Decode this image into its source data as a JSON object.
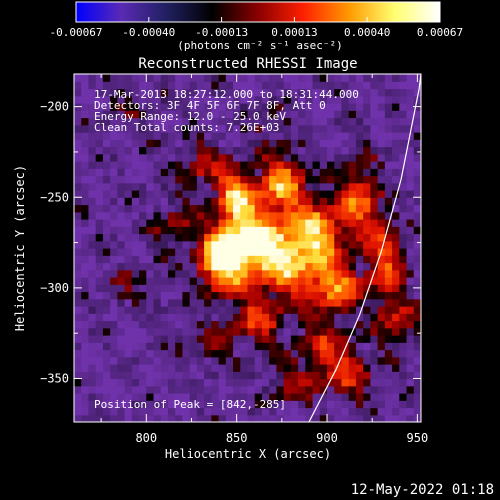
{
  "chart_data": {
    "type": "heatmap",
    "title": "Reconstructed RHESSI Image",
    "xlabel": "Heliocentric X (arcsec)",
    "ylabel": "Heliocentric Y (arcsec)",
    "xlim": [
      760,
      952
    ],
    "ylim": [
      -374,
      -182
    ],
    "x_ticks": [
      800,
      850,
      900,
      950
    ],
    "y_ticks": [
      -200,
      -250,
      -300,
      -350
    ],
    "colorbar": {
      "ticks": [
        "-0.00067",
        "-0.00040",
        "-0.00013",
        "0.00013",
        "0.00040",
        "0.00067"
      ],
      "range": [
        -0.00067,
        0.00067
      ],
      "unit_label": "(photons cm⁻² s⁻¹ asec⁻²)",
      "colors": [
        "#0000ff",
        "#5a2ab4",
        "#202060",
        "#000000",
        "#8a0000",
        "#ff2000",
        "#ff9a00",
        "#ffff70",
        "#ffffff"
      ]
    },
    "annotations": {
      "time_range": "17-Mar-2013 18:27:12.000 to 18:31:44.000",
      "detectors": "Detectors: 3F 4F 5F 6F 7F 8F, Att 0",
      "energy": "Energy Range: 12.0 - 25.0 keV",
      "clean": "Clean    Total counts: 7.26E+03",
      "peak": "Position of Peak = [842,-285]"
    },
    "peak_position": [
      842,
      -285
    ],
    "blobs": [
      {
        "x": 842,
        "y": -285,
        "amp": 1.0,
        "sx": 10,
        "sy": 12
      },
      {
        "x": 858,
        "y": -272,
        "amp": 0.85,
        "sx": 12,
        "sy": 12
      },
      {
        "x": 850,
        "y": -248,
        "amp": 0.8,
        "sx": 8,
        "sy": 10
      },
      {
        "x": 876,
        "y": -242,
        "amp": 0.75,
        "sx": 9,
        "sy": 11
      },
      {
        "x": 878,
        "y": -285,
        "amp": 0.8,
        "sx": 14,
        "sy": 14
      },
      {
        "x": 896,
        "y": -268,
        "amp": 0.7,
        "sx": 10,
        "sy": 12
      },
      {
        "x": 905,
        "y": -300,
        "amp": 0.65,
        "sx": 10,
        "sy": 10
      },
      {
        "x": 918,
        "y": -250,
        "amp": 0.6,
        "sx": 8,
        "sy": 14
      },
      {
        "x": 932,
        "y": -285,
        "amp": 0.55,
        "sx": 8,
        "sy": 18
      },
      {
        "x": 830,
        "y": -232,
        "amp": 0.4,
        "sx": 9,
        "sy": 9
      },
      {
        "x": 815,
        "y": -265,
        "amp": 0.35,
        "sx": 8,
        "sy": 10
      },
      {
        "x": 862,
        "y": -318,
        "amp": 0.5,
        "sx": 10,
        "sy": 9
      },
      {
        "x": 900,
        "y": -335,
        "amp": 0.45,
        "sx": 12,
        "sy": 12
      },
      {
        "x": 940,
        "y": -320,
        "amp": 0.4,
        "sx": 8,
        "sy": 10
      },
      {
        "x": 915,
        "y": -350,
        "amp": 0.35,
        "sx": 10,
        "sy": 9
      },
      {
        "x": 835,
        "y": -330,
        "amp": 0.3,
        "sx": 10,
        "sy": 8
      },
      {
        "x": 790,
        "y": -300,
        "amp": 0.2,
        "sx": 12,
        "sy": 10
      },
      {
        "x": 795,
        "y": -200,
        "amp": 0.15,
        "sx": 14,
        "sy": 10
      },
      {
        "x": 868,
        "y": -210,
        "amp": 0.25,
        "sx": 10,
        "sy": 8
      },
      {
        "x": 880,
        "y": -355,
        "amp": 0.3,
        "sx": 10,
        "sy": 8
      }
    ],
    "limb_curve": [
      [
        890,
        -374
      ],
      [
        905,
        -345
      ],
      [
        918,
        -315
      ],
      [
        930,
        -280
      ],
      [
        941,
        -240
      ],
      [
        951,
        -190
      ],
      [
        952,
        -182
      ]
    ]
  },
  "footer": {
    "date": "12-May-2022 01:18"
  }
}
